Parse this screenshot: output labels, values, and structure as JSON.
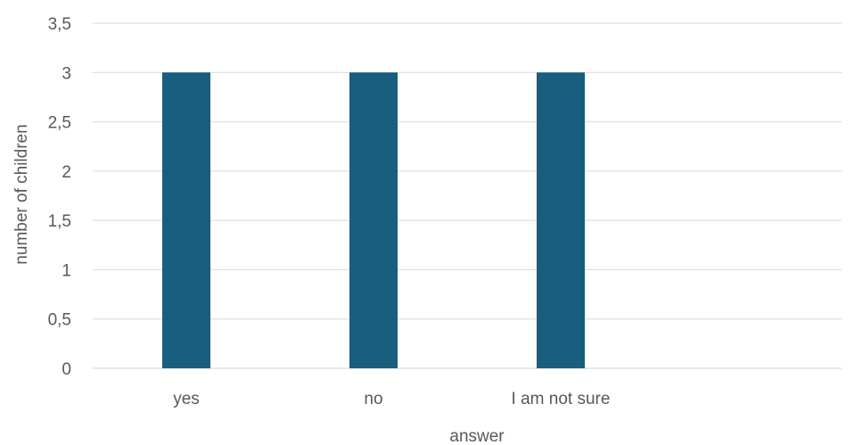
{
  "chart_data": {
    "type": "bar",
    "categories": [
      "yes",
      "no",
      "I am not sure",
      ""
    ],
    "values": [
      3,
      3,
      3,
      null
    ],
    "xlabel": "answer",
    "ylabel": "number of children",
    "ylim": [
      0,
      3.5
    ],
    "yticks": [
      "0",
      "0,5",
      "1",
      "1,5",
      "2",
      "2,5",
      "3",
      "3,5"
    ],
    "grid": true,
    "legend": "none",
    "bar_color": "#175E7F"
  }
}
